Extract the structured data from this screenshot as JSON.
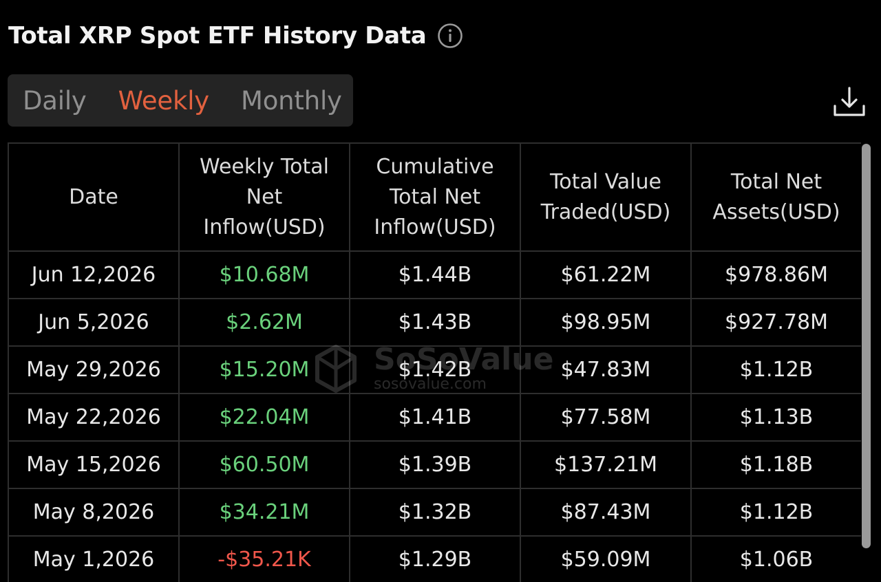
{
  "header": {
    "title": "Total XRP Spot ETF History Data",
    "info_icon": "info-circle-icon"
  },
  "tabs": [
    {
      "label": "Daily",
      "active": false
    },
    {
      "label": "Weekly",
      "active": true
    },
    {
      "label": "Monthly",
      "active": false
    }
  ],
  "toolbar": {
    "download_icon": "download-icon"
  },
  "colors": {
    "accent": "#e2613f",
    "positive": "#6ad17c",
    "negative": "#f0574b",
    "background": "#000000"
  },
  "table": {
    "columns": [
      "Date",
      "Weekly Total Net Inflow(USD)",
      "Cumulative Total Net Inflow(USD)",
      "Total Value Traded(USD)",
      "Total Net Assets(USD)"
    ],
    "rows": [
      {
        "date": "Jun 12,2026",
        "weekly_inflow": "$10.68M",
        "inflow_sign": "positive",
        "cumulative": "$1.44B",
        "value_traded": "$61.22M",
        "net_assets": "$978.86M"
      },
      {
        "date": "Jun 5,2026",
        "weekly_inflow": "$2.62M",
        "inflow_sign": "positive",
        "cumulative": "$1.43B",
        "value_traded": "$98.95M",
        "net_assets": "$927.78M"
      },
      {
        "date": "May 29,2026",
        "weekly_inflow": "$15.20M",
        "inflow_sign": "positive",
        "cumulative": "$1.42B",
        "value_traded": "$47.83M",
        "net_assets": "$1.12B"
      },
      {
        "date": "May 22,2026",
        "weekly_inflow": "$22.04M",
        "inflow_sign": "positive",
        "cumulative": "$1.41B",
        "value_traded": "$77.58M",
        "net_assets": "$1.13B"
      },
      {
        "date": "May 15,2026",
        "weekly_inflow": "$60.50M",
        "inflow_sign": "positive",
        "cumulative": "$1.39B",
        "value_traded": "$137.21M",
        "net_assets": "$1.18B"
      },
      {
        "date": "May 8,2026",
        "weekly_inflow": "$34.21M",
        "inflow_sign": "positive",
        "cumulative": "$1.32B",
        "value_traded": "$87.43M",
        "net_assets": "$1.12B"
      },
      {
        "date": "May 1,2026",
        "weekly_inflow": "-$35.21K",
        "inflow_sign": "negative",
        "cumulative": "$1.29B",
        "value_traded": "$59.09M",
        "net_assets": "$1.06B"
      }
    ]
  },
  "watermark": {
    "name": "SoSoValue",
    "url": "sosovalue.com",
    "logo_icon": "sosovalue-logo-icon"
  }
}
